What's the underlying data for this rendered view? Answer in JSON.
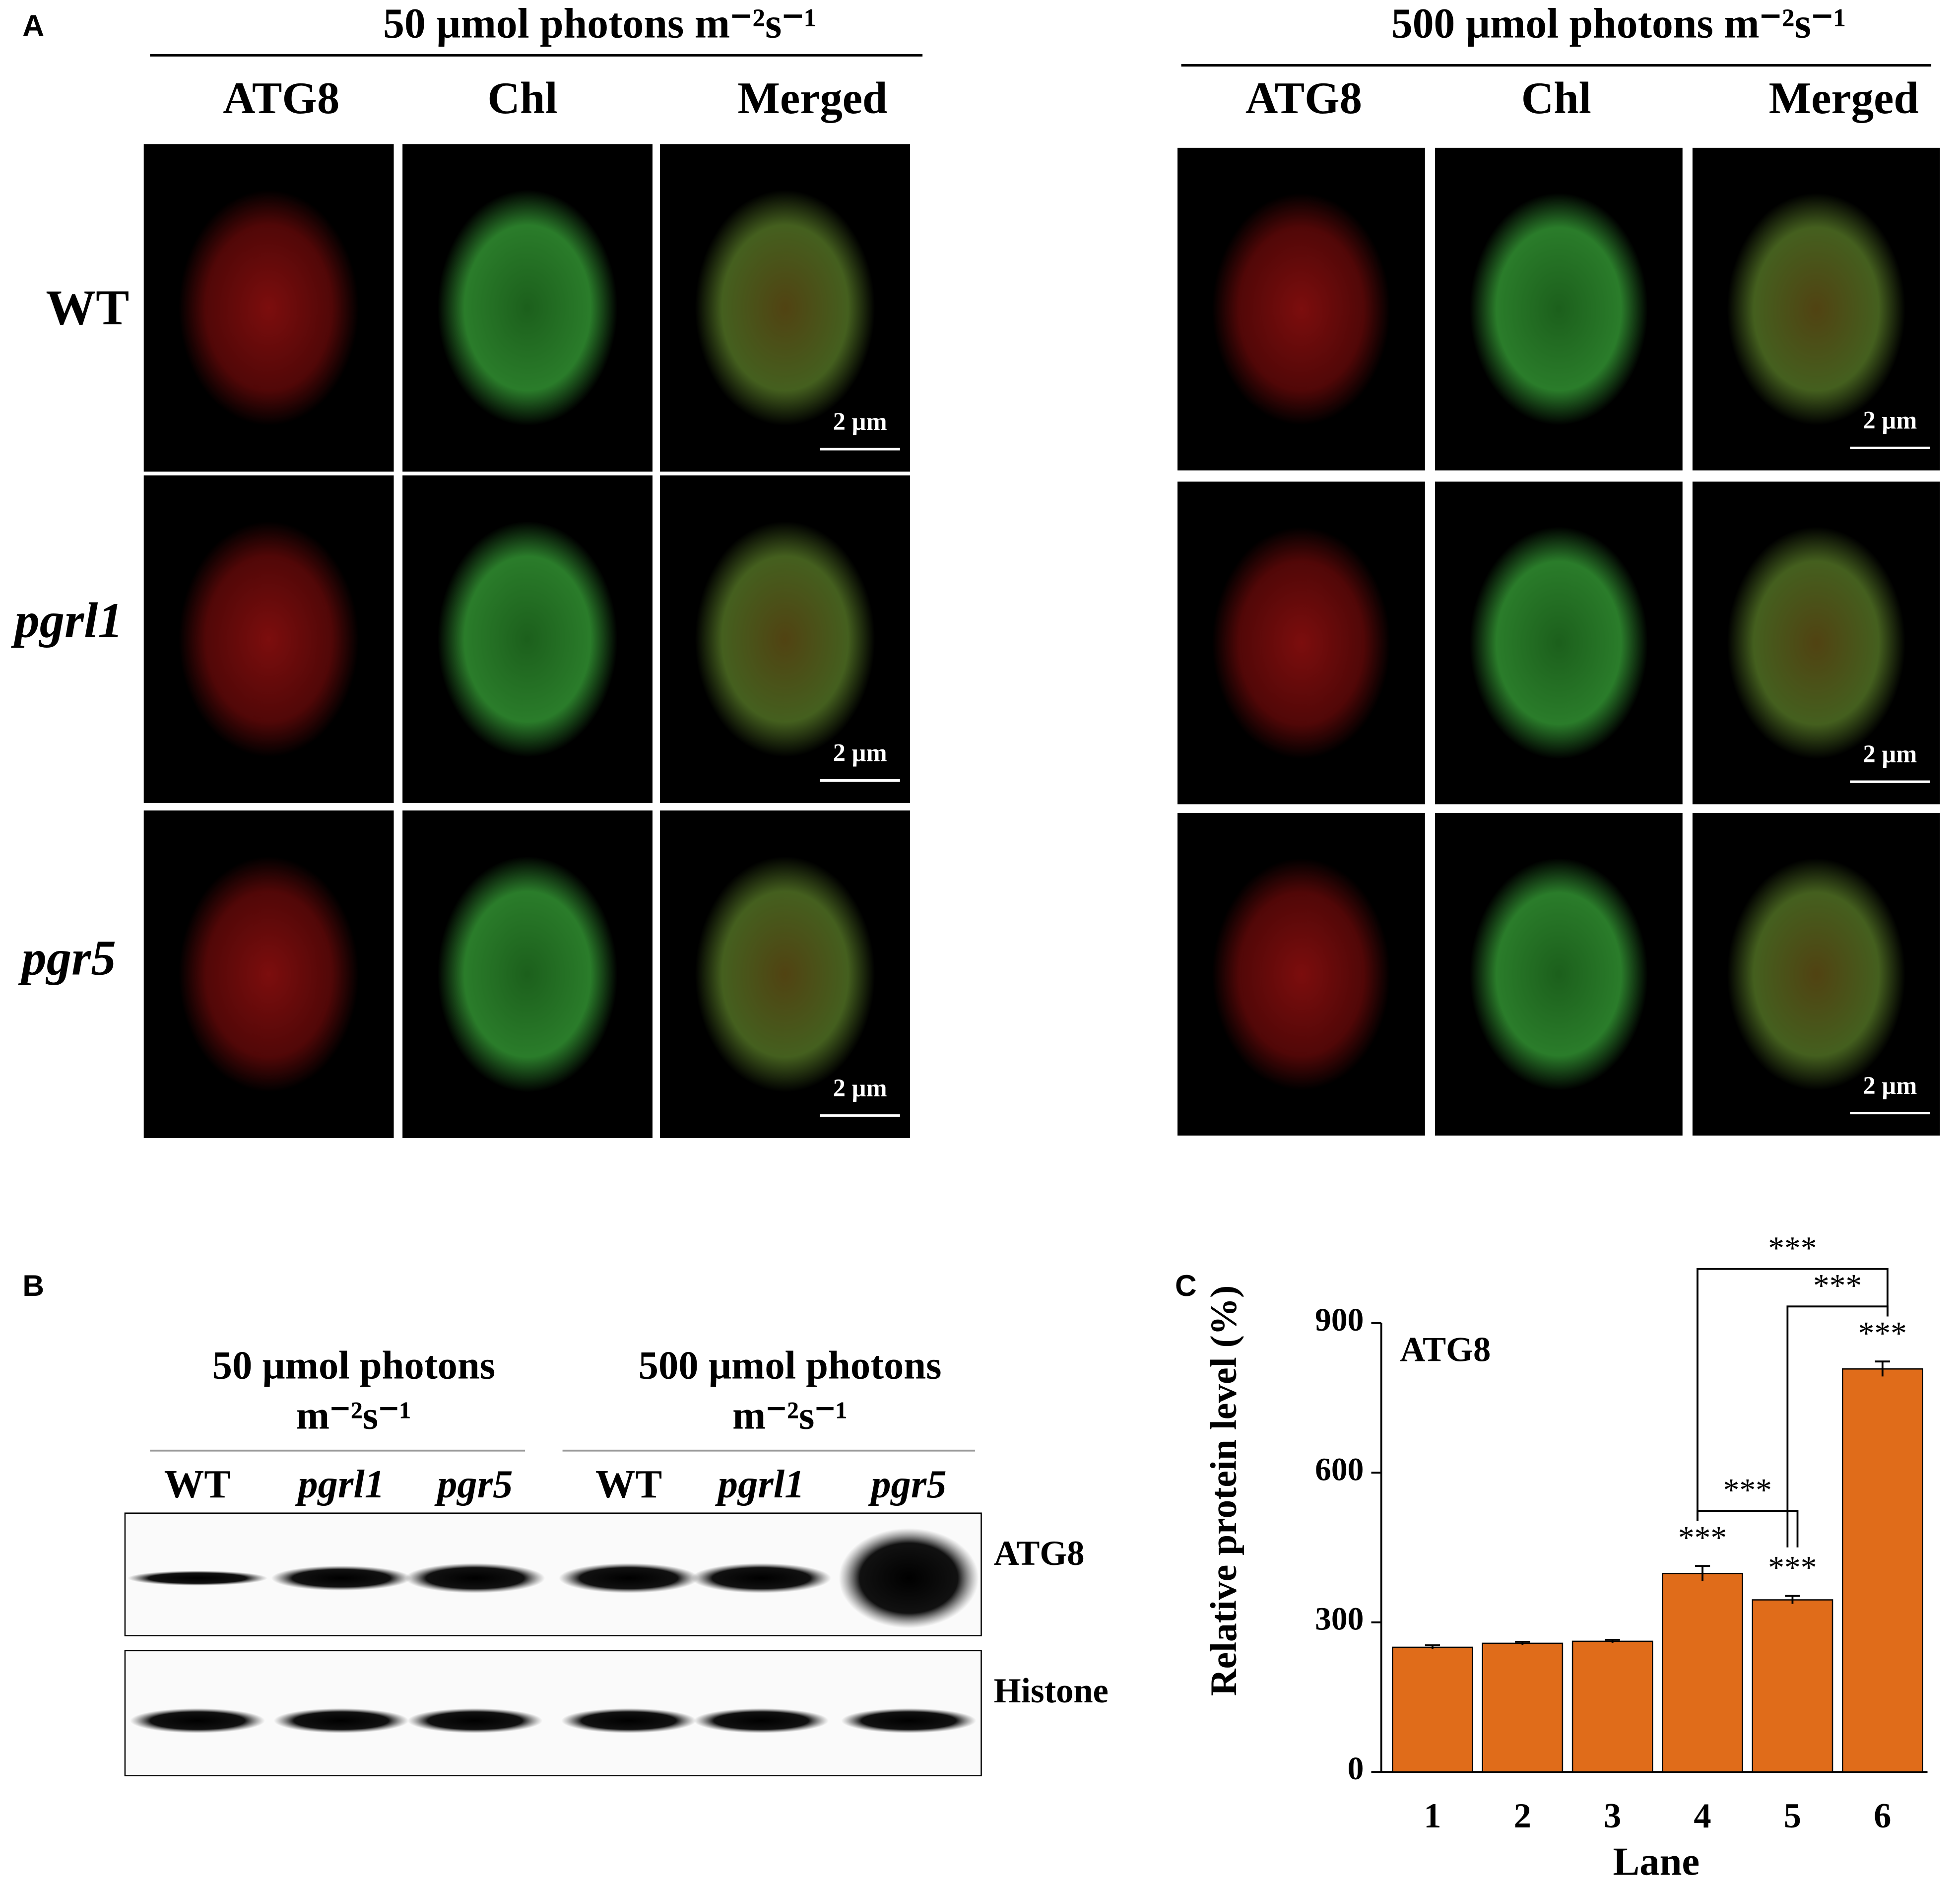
{
  "panel_a": {
    "label": "A",
    "conditions": [
      "50 µmol photons m⁻²s⁻¹",
      "500 µmol photons m⁻²s⁻¹"
    ],
    "columns": [
      "ATG8",
      "Chl",
      "Merged"
    ],
    "rows": [
      "WT",
      "pgrl1",
      "pgr5"
    ],
    "scale_bar": "2 µm"
  },
  "panel_b": {
    "label": "B",
    "conditions": [
      [
        "50 µmol photons",
        "m⁻²s⁻¹"
      ],
      [
        "500 µmol photons",
        "m⁻²s⁻¹"
      ]
    ],
    "lanes": [
      "WT",
      "pgrl1",
      "pgr5",
      "WT",
      "pgrl1",
      "pgr5"
    ],
    "blots": [
      "ATG8",
      "Histone"
    ]
  },
  "chart_data": {
    "type": "bar",
    "label": "C",
    "title": "ATG8",
    "x_label": "Lane",
    "y_label": "Relative protein level (%)",
    "categories": [
      "1",
      "2",
      "3",
      "4",
      "5",
      "6"
    ],
    "values": [
      250,
      258,
      262,
      398,
      345,
      808
    ],
    "errors": [
      4,
      3,
      3,
      15,
      8,
      15
    ],
    "color": "#e06c1a",
    "ylim": [
      0,
      900
    ],
    "yticks": [
      0,
      300,
      600,
      900
    ],
    "significance": [
      null,
      null,
      null,
      "***",
      "***",
      "***"
    ],
    "brackets": [
      {
        "label": "***",
        "between": [
          "4",
          "5"
        ]
      },
      {
        "label": "***",
        "between": [
          "5",
          "6"
        ]
      },
      {
        "label": "***",
        "between": [
          "4",
          "6"
        ]
      }
    ]
  }
}
